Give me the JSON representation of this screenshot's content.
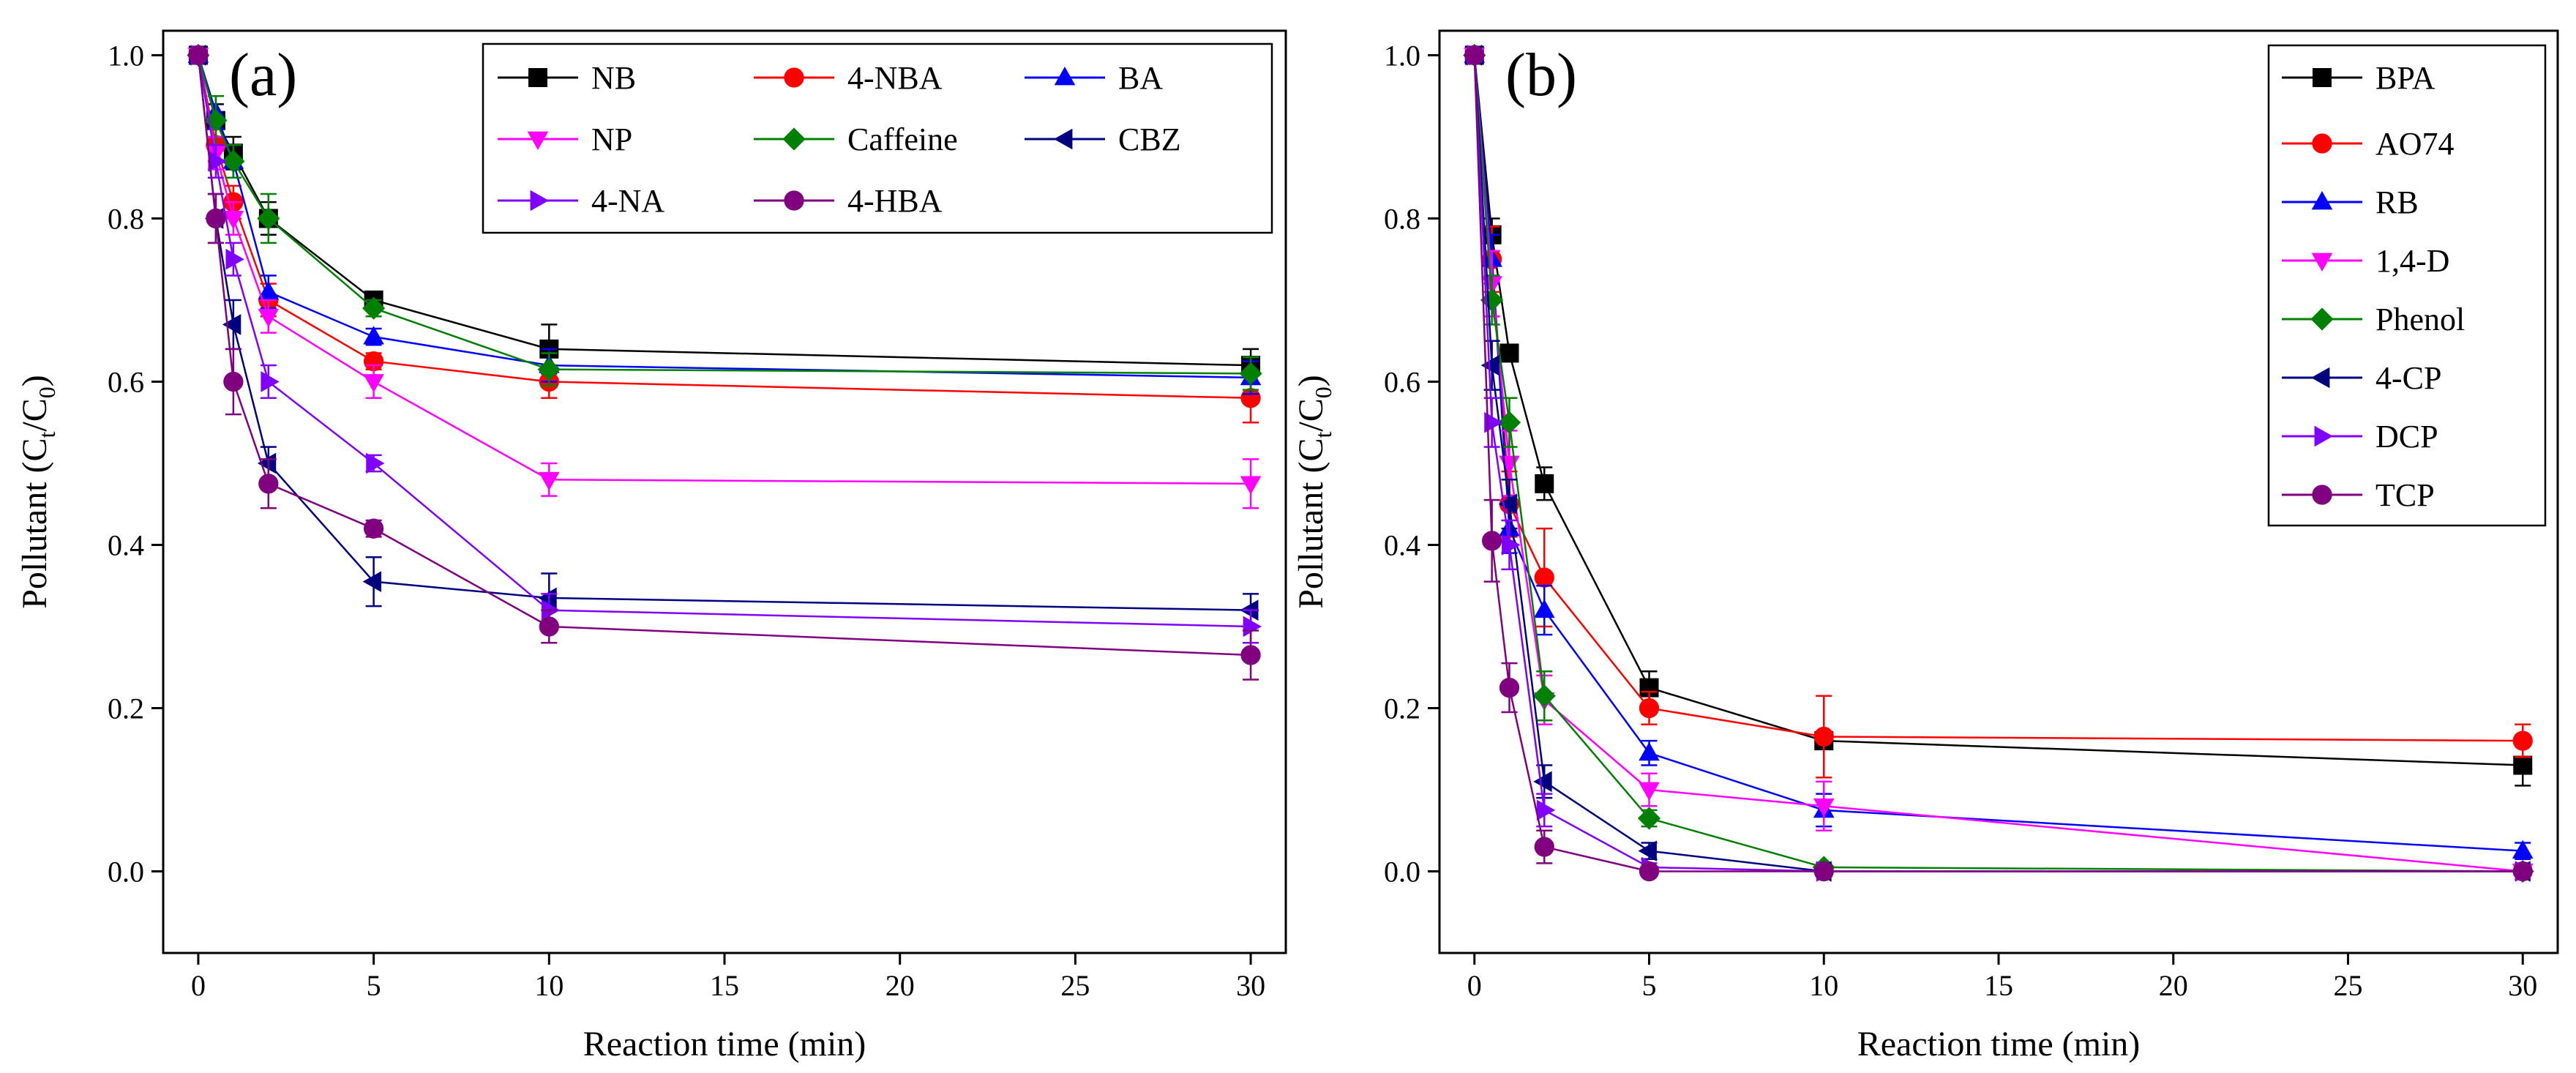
{
  "chart_data": [
    {
      "type": "line",
      "panel_label": "(a)",
      "xlabel": "Reaction time (min)",
      "ylabel": "Pollutant (C",
      "ylabel_sub1": "t",
      "ylabel_mid": "/C",
      "ylabel_sub2": "0",
      "ylabel_end": ")",
      "xlim": [
        -1,
        31
      ],
      "ylim": [
        -0.1,
        1.03
      ],
      "xticks": [
        0,
        5,
        10,
        15,
        20,
        25,
        30
      ],
      "yticks": [
        0.0,
        0.2,
        0.4,
        0.6,
        0.8,
        1.0
      ],
      "ytick_labels": [
        "0.0",
        "0.2",
        "0.4",
        "0.6",
        "0.8",
        "1.0"
      ],
      "legend_position": "top-right",
      "legend_columns": 3,
      "series": [
        {
          "name": "NB",
          "color": "#000000",
          "marker": "square",
          "x": [
            0,
            0.5,
            1,
            2,
            5,
            10,
            30
          ],
          "y": [
            1.0,
            0.92,
            0.88,
            0.8,
            0.7,
            0.64,
            0.62
          ],
          "err": [
            0,
            0.02,
            0.02,
            0.02,
            0.01,
            0.03,
            0.02
          ]
        },
        {
          "name": "4-NBA",
          "color": "#ff0000",
          "marker": "circle",
          "x": [
            0,
            0.5,
            1,
            2,
            5,
            10,
            30
          ],
          "y": [
            1.0,
            0.89,
            0.82,
            0.7,
            0.625,
            0.6,
            0.58
          ],
          "err": [
            0,
            0.02,
            0.02,
            0.02,
            0.01,
            0.02,
            0.03
          ]
        },
        {
          "name": "BA",
          "color": "#0000ff",
          "marker": "triangle-up",
          "x": [
            0,
            0.5,
            1,
            2,
            5,
            10,
            30
          ],
          "y": [
            1.0,
            0.93,
            0.87,
            0.71,
            0.655,
            0.62,
            0.605
          ],
          "err": [
            0,
            0.02,
            0.02,
            0.02,
            0.01,
            0.02,
            0.02
          ]
        },
        {
          "name": "NP",
          "color": "#ff00ff",
          "marker": "triangle-down",
          "x": [
            0,
            0.5,
            1,
            2,
            5,
            10,
            30
          ],
          "y": [
            1.0,
            0.88,
            0.8,
            0.68,
            0.6,
            0.48,
            0.475
          ],
          "err": [
            0,
            0.02,
            0.02,
            0.02,
            0.02,
            0.02,
            0.03
          ]
        },
        {
          "name": "Caffeine",
          "color": "#008000",
          "marker": "diamond",
          "x": [
            0,
            0.5,
            1,
            2,
            5,
            10,
            30
          ],
          "y": [
            1.0,
            0.92,
            0.87,
            0.8,
            0.69,
            0.615,
            0.61
          ],
          "err": [
            0,
            0.03,
            0.02,
            0.03,
            0.01,
            0.02,
            0.02
          ]
        },
        {
          "name": "CBZ",
          "color": "#000080",
          "marker": "triangle-left",
          "x": [
            0,
            0.5,
            1,
            2,
            5,
            10,
            30
          ],
          "y": [
            1.0,
            0.8,
            0.67,
            0.5,
            0.355,
            0.335,
            0.32
          ],
          "err": [
            0,
            0.03,
            0.03,
            0.02,
            0.03,
            0.03,
            0.02
          ]
        },
        {
          "name": "4-NA",
          "color": "#8000ff",
          "marker": "triangle-right",
          "x": [
            0,
            0.5,
            1,
            2,
            5,
            10,
            30
          ],
          "y": [
            1.0,
            0.87,
            0.75,
            0.6,
            0.5,
            0.32,
            0.3
          ],
          "err": [
            0,
            0.02,
            0.02,
            0.02,
            0.01,
            0.02,
            0.02
          ]
        },
        {
          "name": "4-HBA",
          "color": "#800080",
          "marker": "circle",
          "x": [
            0,
            0.5,
            1,
            2,
            5,
            10,
            30
          ],
          "y": [
            1.0,
            0.8,
            0.6,
            0.475,
            0.42,
            0.3,
            0.265
          ],
          "err": [
            0,
            0.03,
            0.04,
            0.03,
            0.01,
            0.02,
            0.03
          ]
        }
      ]
    },
    {
      "type": "line",
      "panel_label": "(b)",
      "xlabel": "Reaction time (min)",
      "ylabel": "Pollutant (C",
      "ylabel_sub1": "t",
      "ylabel_mid": "/C",
      "ylabel_sub2": "0",
      "ylabel_end": ")",
      "xlim": [
        -1,
        31
      ],
      "ylim": [
        -0.1,
        1.03
      ],
      "xticks": [
        0,
        5,
        10,
        15,
        20,
        25,
        30
      ],
      "yticks": [
        0.0,
        0.2,
        0.4,
        0.6,
        0.8,
        1.0
      ],
      "ytick_labels": [
        "0.0",
        "0.2",
        "0.4",
        "0.6",
        "0.8",
        "1.0"
      ],
      "legend_position": "top-right",
      "legend_columns": 1,
      "series": [
        {
          "name": "BPA",
          "color": "#000000",
          "marker": "square",
          "x": [
            0,
            0.5,
            1,
            2,
            5,
            10,
            30
          ],
          "y": [
            1.0,
            0.78,
            0.635,
            0.475,
            0.225,
            0.16,
            0.13
          ],
          "err": [
            0,
            0.02,
            0.01,
            0.02,
            0.02,
            0.01,
            0.025
          ]
        },
        {
          "name": "AO74",
          "color": "#ff0000",
          "marker": "circle",
          "x": [
            0,
            0.5,
            1,
            2,
            5,
            10,
            30
          ],
          "y": [
            1.0,
            0.75,
            0.45,
            0.36,
            0.2,
            0.165,
            0.16
          ],
          "err": [
            0,
            0.04,
            0.04,
            0.06,
            0.02,
            0.05,
            0.02
          ]
        },
        {
          "name": "RB",
          "color": "#0000ff",
          "marker": "triangle-up",
          "x": [
            0,
            0.5,
            1,
            2,
            5,
            10,
            30
          ],
          "y": [
            1.0,
            0.75,
            0.42,
            0.32,
            0.145,
            0.075,
            0.025
          ],
          "err": [
            0,
            0.03,
            0.03,
            0.03,
            0.015,
            0.02,
            0.01
          ]
        },
        {
          "name": "1,4-D",
          "color": "#ff00ff",
          "marker": "triangle-down",
          "x": [
            0,
            0.5,
            1,
            2,
            5,
            10,
            30
          ],
          "y": [
            1.0,
            0.72,
            0.5,
            0.21,
            0.1,
            0.08,
            0.0
          ],
          "err": [
            0,
            0.04,
            0.04,
            0.03,
            0.02,
            0.03,
            0.01
          ]
        },
        {
          "name": "Phenol",
          "color": "#008000",
          "marker": "diamond",
          "x": [
            0,
            0.5,
            1,
            2,
            5,
            10,
            30
          ],
          "y": [
            1.0,
            0.7,
            0.55,
            0.215,
            0.065,
            0.005,
            0.0
          ],
          "err": [
            0,
            0.03,
            0.03,
            0.03,
            0.01,
            0.005,
            0.005
          ]
        },
        {
          "name": "4-CP",
          "color": "#000080",
          "marker": "triangle-left",
          "x": [
            0,
            0.5,
            1,
            2,
            5,
            10,
            30
          ],
          "y": [
            1.0,
            0.62,
            0.45,
            0.11,
            0.025,
            0.0,
            0.0
          ],
          "err": [
            0,
            0.03,
            0.03,
            0.02,
            0.01,
            0.005,
            0.005
          ]
        },
        {
          "name": "DCP",
          "color": "#8000ff",
          "marker": "triangle-right",
          "x": [
            0,
            0.5,
            1,
            2,
            5,
            10,
            30
          ],
          "y": [
            1.0,
            0.55,
            0.4,
            0.075,
            0.005,
            0.0,
            0.0
          ],
          "err": [
            0,
            0.03,
            0.03,
            0.02,
            0.005,
            0.005,
            0.005
          ]
        },
        {
          "name": "TCP",
          "color": "#800080",
          "marker": "circle",
          "x": [
            0,
            0.5,
            1,
            2,
            5,
            10,
            30
          ],
          "y": [
            1.0,
            0.405,
            0.225,
            0.03,
            0.0,
            0.0,
            0.0
          ],
          "err": [
            0,
            0.05,
            0.03,
            0.02,
            0.005,
            0.005,
            0.005
          ]
        }
      ]
    }
  ]
}
